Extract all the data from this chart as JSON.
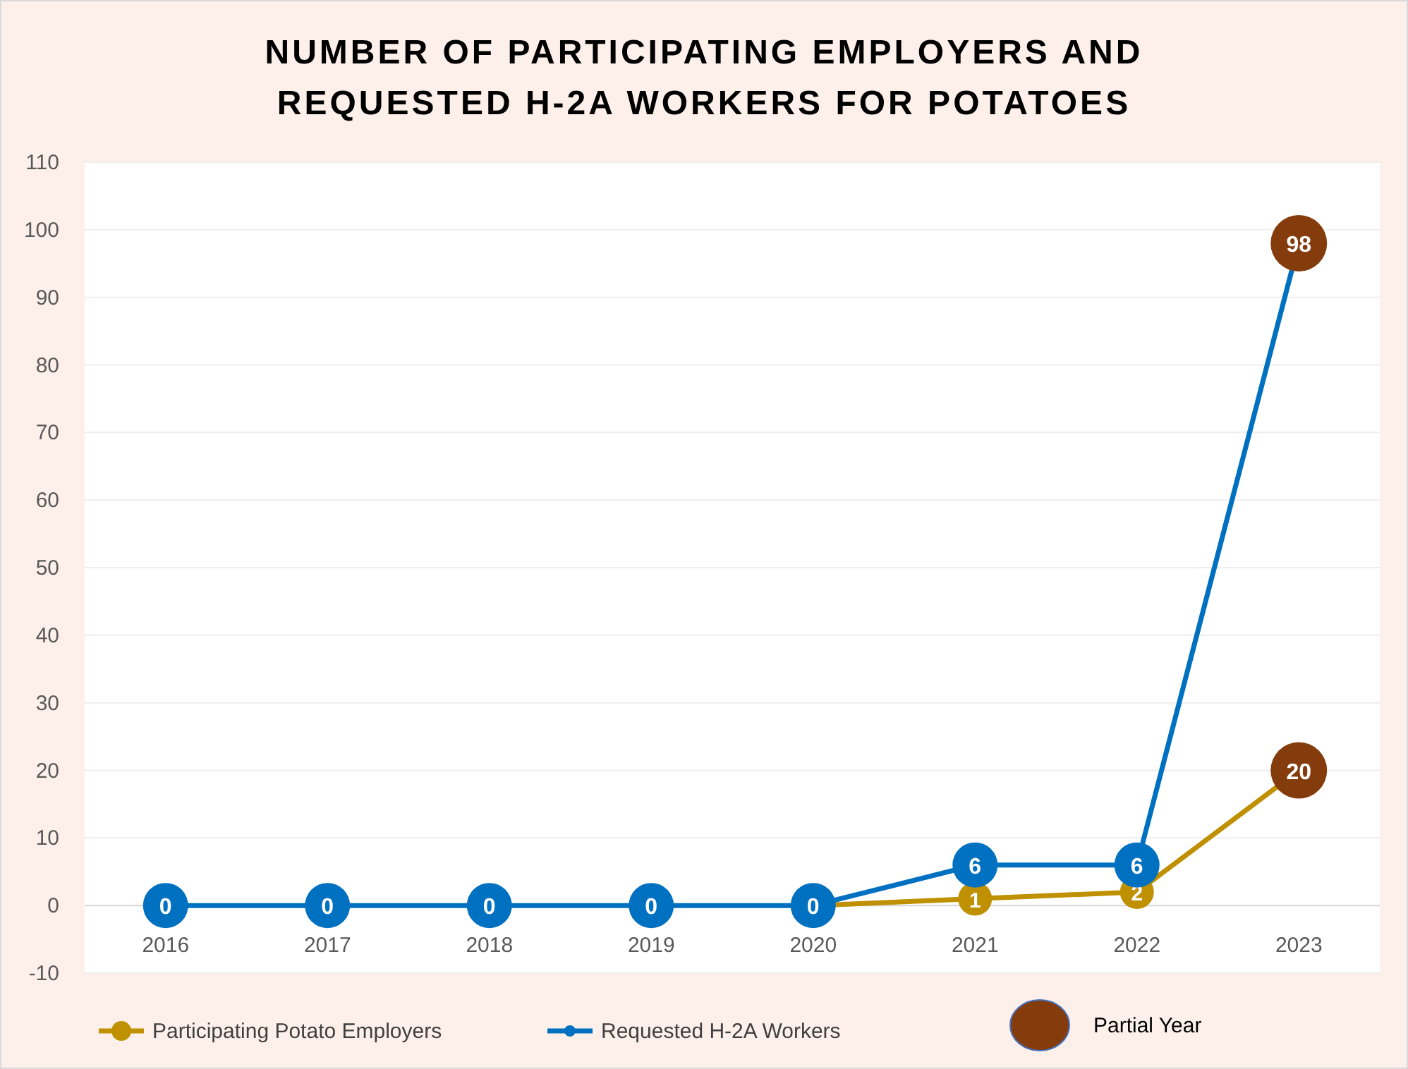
{
  "chart_data": {
    "type": "line",
    "title": "NUMBER OF PARTICIPATING EMPLOYERS AND REQUESTED H-2A WORKERS FOR POTATOES",
    "categories": [
      "2016",
      "2017",
      "2018",
      "2019",
      "2020",
      "2021",
      "2022",
      "2023"
    ],
    "series": [
      {
        "name": "Participating Potato Employers",
        "color": "#bf9000",
        "colors": [
          "#bf9000",
          "#bf9000",
          "#bf9000",
          "#bf9000",
          "#bf9000",
          "#bf9000",
          "#bf9000",
          "#843c0c"
        ],
        "values": [
          null,
          null,
          null,
          null,
          0,
          1,
          2,
          20
        ],
        "value_labels": [
          null,
          null,
          null,
          null,
          null,
          "1",
          "2",
          "20"
        ]
      },
      {
        "name": "Requested H-2A Workers",
        "color": "#0070c0",
        "colors": [
          "#0070c0",
          "#0070c0",
          "#0070c0",
          "#0070c0",
          "#0070c0",
          "#0070c0",
          "#0070c0",
          "#843c0c"
        ],
        "values": [
          0,
          0,
          0,
          0,
          0,
          6,
          6,
          98
        ],
        "value_labels": [
          "0",
          "0",
          "0",
          "0",
          "0",
          "6",
          "6",
          "98"
        ]
      }
    ],
    "ylim": [
      -10,
      110
    ],
    "yticks": [
      -10,
      0,
      10,
      20,
      30,
      40,
      50,
      60,
      70,
      80,
      90,
      100,
      110
    ],
    "grid": "y",
    "legend": "bottom",
    "marker": "circle",
    "line_style": "solid",
    "annotations": [
      "Partial Year"
    ]
  }
}
